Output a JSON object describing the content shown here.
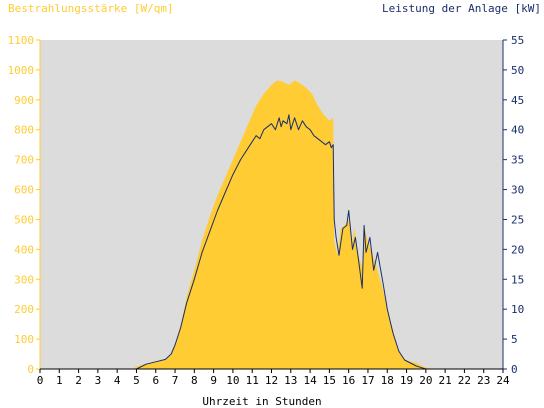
{
  "chart_data": {
    "type": "area",
    "left_title": "Bestrahlungsstärke [W/qm]",
    "right_title": "Leistung der Anlage [kW]",
    "xlabel": "Uhrzeit in Stunden",
    "x_ticks": [
      "0",
      "1",
      "2",
      "3",
      "4",
      "5",
      "6",
      "7",
      "8",
      "9",
      "10",
      "11",
      "12",
      "13",
      "14",
      "15",
      "16",
      "17",
      "18",
      "19",
      "20",
      "21",
      "22",
      "23",
      "24"
    ],
    "y_left_ticks": [
      "0",
      "100",
      "200",
      "300",
      "400",
      "500",
      "600",
      "700",
      "800",
      "900",
      "1000",
      "1100"
    ],
    "y_right_ticks": [
      "0",
      "5",
      "10",
      "15",
      "20",
      "25",
      "30",
      "35",
      "40",
      "45",
      "50",
      "55"
    ],
    "xlim": [
      0,
      24
    ],
    "ylim_left": [
      0,
      1100
    ],
    "ylim_right": [
      0,
      55
    ],
    "grid": false,
    "colors": {
      "plot_bg": "#dcdcdc",
      "irradiance_fill": "#ffcc33",
      "left_axis": "#ffcc33",
      "right_axis": "#1a2e6b",
      "power_line": "#1a2e6b"
    },
    "series": [
      {
        "axis": "left",
        "style": "area",
        "x": [
          0,
          4.8,
          5.0,
          5.5,
          6.0,
          6.5,
          6.8,
          7.0,
          7.3,
          7.6,
          8.0,
          8.4,
          8.8,
          9.2,
          9.6,
          10.0,
          10.4,
          10.8,
          11.2,
          11.6,
          12.0,
          12.3,
          12.6,
          12.9,
          13.2,
          13.5,
          13.8,
          14.1,
          14.4,
          14.7,
          15.0,
          15.2,
          15.25,
          15.4,
          15.6,
          15.8,
          16.0,
          16.2,
          16.3,
          16.5,
          16.7,
          16.8,
          17.0,
          17.2,
          17.5,
          17.8,
          18.0,
          18.3,
          18.6,
          18.9,
          19.2,
          19.5,
          19.8,
          20.0,
          20.2,
          20.5,
          24
        ],
        "values": [
          0,
          0,
          8,
          18,
          25,
          32,
          45,
          80,
          150,
          240,
          330,
          430,
          510,
          580,
          640,
          700,
          760,
          820,
          880,
          920,
          950,
          965,
          960,
          950,
          965,
          955,
          940,
          920,
          880,
          850,
          830,
          840,
          430,
          380,
          470,
          480,
          500,
          420,
          470,
          380,
          340,
          480,
          420,
          390,
          330,
          260,
          200,
          130,
          60,
          30,
          25,
          20,
          10,
          5,
          2,
          0,
          0
        ]
      },
      {
        "axis": "right",
        "style": "line",
        "x": [
          0,
          5.0,
          5.5,
          6.0,
          6.5,
          6.8,
          7.0,
          7.3,
          7.6,
          8.0,
          8.4,
          8.8,
          9.2,
          9.6,
          10.0,
          10.4,
          10.8,
          11.0,
          11.2,
          11.4,
          11.6,
          11.8,
          12.0,
          12.2,
          12.4,
          12.5,
          12.6,
          12.8,
          12.9,
          13.0,
          13.2,
          13.4,
          13.6,
          13.8,
          14.0,
          14.2,
          14.4,
          14.6,
          14.8,
          15.0,
          15.1,
          15.2,
          15.25,
          15.35,
          15.5,
          15.7,
          15.9,
          16.0,
          16.2,
          16.35,
          16.5,
          16.7,
          16.8,
          16.9,
          17.1,
          17.3,
          17.5,
          17.8,
          18.0,
          18.3,
          18.6,
          18.9,
          19.2,
          19.5,
          19.8,
          20.0,
          20.2,
          20.4,
          24
        ],
        "values": [
          0,
          0,
          0.8,
          1.2,
          1.6,
          2.5,
          4,
          7,
          11,
          15,
          19.5,
          23,
          26.5,
          29.5,
          32.5,
          35,
          37,
          38,
          39,
          38.5,
          40,
          40.5,
          41,
          40,
          42,
          40.5,
          41.5,
          41,
          42.5,
          40,
          42,
          40,
          41.5,
          40.5,
          40,
          39,
          38.5,
          38,
          37.5,
          38,
          37,
          37.5,
          25,
          22,
          19,
          23.5,
          24,
          26.5,
          20,
          22,
          18.5,
          13.5,
          24,
          19.5,
          22,
          16.5,
          19.5,
          14,
          10,
          6,
          3,
          1.5,
          1,
          0.5,
          0.2,
          0,
          0,
          0,
          0
        ]
      }
    ]
  }
}
